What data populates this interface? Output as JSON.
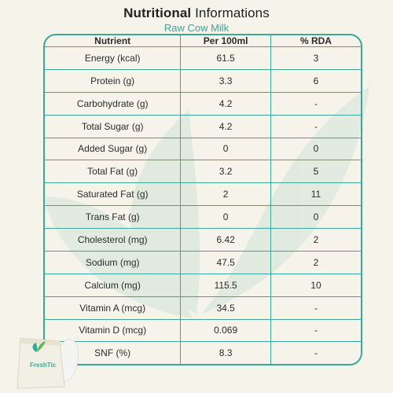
{
  "header": {
    "title_strong": "Nutritional",
    "title_rest": " Informations",
    "subtitle": "Raw Cow Milk"
  },
  "table": {
    "headers": [
      "Nutrient",
      "Per 100ml",
      "% RDA"
    ],
    "rows": [
      [
        "Energy (kcal)",
        "61.5",
        "3"
      ],
      [
        "Protein (g)",
        "3.3",
        "6"
      ],
      [
        "Carbohydrate (g)",
        "4.2",
        "-"
      ],
      [
        "Total Sugar (g)",
        "4.2",
        "-"
      ],
      [
        "Added Sugar (g)",
        "0",
        "0"
      ],
      [
        "Total Fat (g)",
        "3.2",
        "5"
      ],
      [
        "Saturated Fat (g)",
        "2",
        "11"
      ],
      [
        "Trans Fat (g)",
        "0",
        "0"
      ],
      [
        "Cholesterol (mg)",
        "6.42",
        "2"
      ],
      [
        "Sodium (mg)",
        "47.5",
        "2"
      ],
      [
        "Calcium (mg)",
        "115.5",
        "10"
      ],
      [
        "Vitamin A (mcg)",
        "34.5",
        "-"
      ],
      [
        "Vitamin D (mcg)",
        "0.069",
        "-"
      ],
      [
        "SNF (%)",
        "8.3",
        "-"
      ]
    ]
  },
  "product": {
    "brand_label": "FreshTic",
    "icon": "milk-pouch-icon"
  },
  "colors": {
    "accent": "#3aa79b",
    "background": "#f6f3ea",
    "watermark": "#dfeadf"
  }
}
